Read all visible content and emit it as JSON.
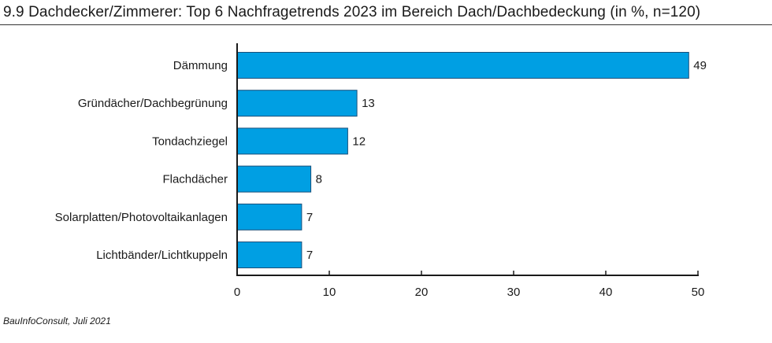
{
  "chart_data": {
    "type": "bar",
    "orientation": "horizontal",
    "title": "9.9 Dachdecker/Zimmerer: Top 6 Nachfragetrends 2023 im Bereich Dach/Dachbedeckung (in %, n=120)",
    "categories": [
      "Dämmung",
      "Gründächer/Dachbegrünung",
      "Tondachziegel",
      "Flachdächer",
      "Solarplatten/Photovoltaikanlagen",
      "Lichtbänder/Lichtkuppeln"
    ],
    "values": [
      49,
      13,
      12,
      8,
      7,
      7
    ],
    "data_labels": [
      "49",
      "13",
      "12",
      "8",
      "7",
      "7"
    ],
    "xlim": [
      0,
      50
    ],
    "xticks": [
      0,
      10,
      20,
      30,
      40,
      50
    ],
    "xtick_labels": [
      "0",
      "10",
      "20",
      "30",
      "40",
      "50"
    ],
    "grid": false,
    "bar_color": "#009fe3",
    "bar_edge_color": "#1a4f7a"
  },
  "source": "BauInfoConsult, Juli 2021"
}
